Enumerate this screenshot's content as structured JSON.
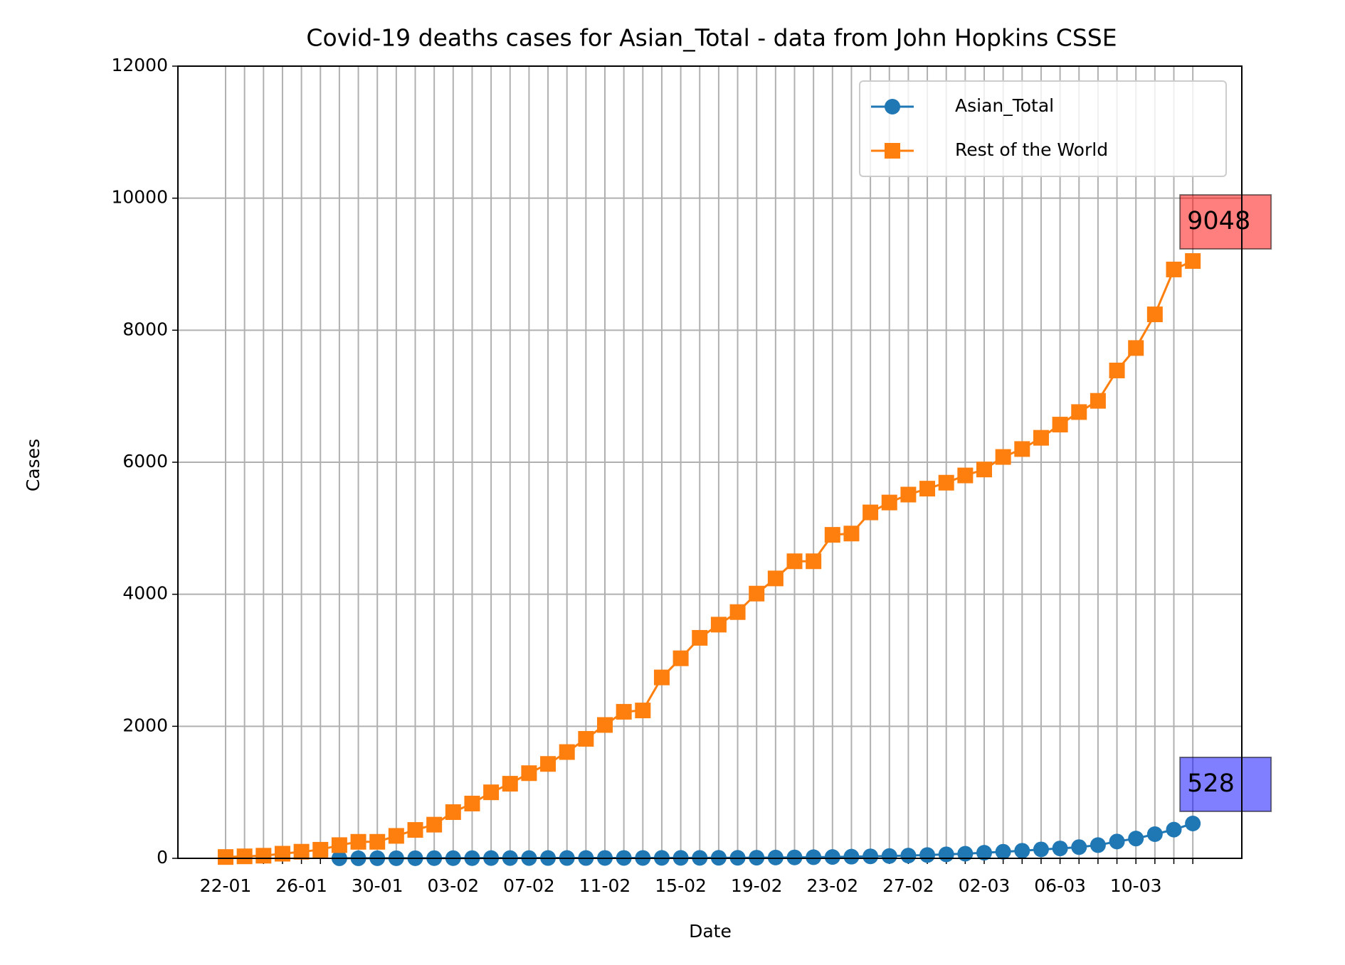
{
  "chart_data": {
    "type": "line",
    "title": "Covid-19 deaths cases for Asian_Total - data from John Hopkins CSSE",
    "x_label": "Date",
    "y_label": "Cases",
    "categories": [
      "22-01",
      null,
      null,
      null,
      "26-01",
      null,
      null,
      null,
      "30-01",
      null,
      null,
      null,
      "03-02",
      null,
      null,
      null,
      "07-02",
      null,
      null,
      null,
      "11-02",
      null,
      null,
      null,
      "15-02",
      null,
      null,
      null,
      "19-02",
      null,
      null,
      null,
      "23-02",
      null,
      null,
      null,
      "27-02",
      null,
      null,
      null,
      "02-03",
      null,
      null,
      null,
      "06-03",
      null,
      null,
      null,
      "10-03",
      null,
      null,
      null
    ],
    "series": [
      {
        "name": "Asian_Total",
        "color": "#1f77b4",
        "marker": "circle",
        "label_color": "#0000ff",
        "values": [
          null,
          null,
          null,
          null,
          null,
          null,
          1,
          1,
          2,
          2,
          2,
          3,
          3,
          3,
          4,
          4,
          4,
          5,
          5,
          5,
          6,
          6,
          6,
          7,
          7,
          7,
          8,
          8,
          10,
          12,
          14,
          17,
          20,
          25,
          30,
          35,
          42,
          50,
          60,
          70,
          85,
          100,
          115,
          135,
          150,
          170,
          200,
          255,
          300,
          366,
          435,
          528
        ]
      },
      {
        "name": "Rest of the World",
        "color": "#ff7f0e",
        "marker": "square",
        "label_color": "#ff0000",
        "values": [
          20,
          30,
          40,
          70,
          100,
          130,
          200,
          250,
          250,
          340,
          430,
          510,
          700,
          830,
          1000,
          1130,
          1290,
          1430,
          1610,
          1810,
          2020,
          2220,
          2240,
          2740,
          3030,
          3340,
          3540,
          3730,
          4010,
          4240,
          4500,
          4500,
          4900,
          4920,
          5240,
          5390,
          5510,
          5600,
          5690,
          5800,
          5890,
          6080,
          6200,
          6370,
          6570,
          6760,
          6930,
          7390,
          7730,
          8240,
          8920,
          9048
        ]
      }
    ],
    "ylim": [
      0,
      12000
    ],
    "yticks": [
      0,
      2000,
      4000,
      6000,
      8000,
      10000,
      12000
    ],
    "grid": true,
    "legend": "upper right"
  }
}
